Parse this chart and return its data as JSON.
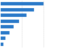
{
  "values": [
    2402,
    1890,
    1470,
    1050,
    710,
    480,
    280,
    140
  ],
  "bar_color": "#2878c8",
  "background_color": "#ffffff",
  "plot_bg": "#f0f0f0",
  "right_bg": "#ffffff",
  "figsize": [
    1.0,
    0.71
  ],
  "dpi": 100,
  "bar_height": 0.55,
  "xlim_max": 3600
}
